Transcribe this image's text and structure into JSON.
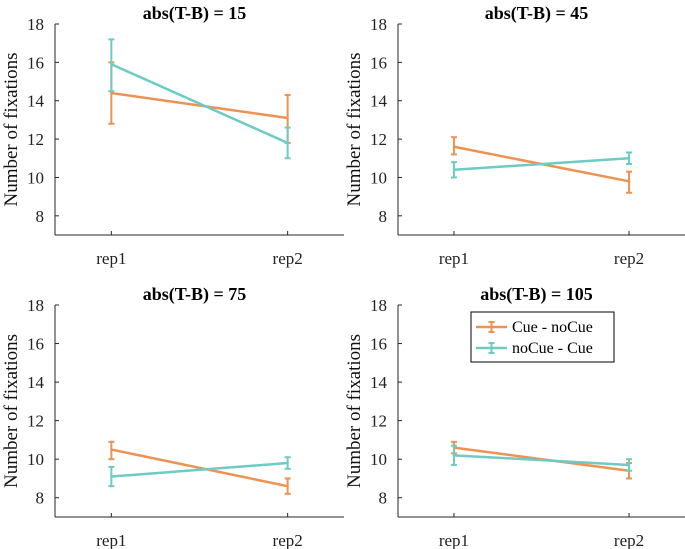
{
  "colors": {
    "cue_nocue": "#EE9254",
    "nocue_cue": "#6CCCC4",
    "axis": "#262626"
  },
  "legend": {
    "entries": [
      "Cue - noCue",
      "noCue - Cue"
    ]
  },
  "chart_data": [
    {
      "type": "line",
      "title": "abs(T-B) = 15",
      "ylabel": "Number of fixations",
      "xlabel": "",
      "categories": [
        "rep1",
        "rep2"
      ],
      "ylim": [
        7,
        18
      ],
      "yticks": [
        8,
        10,
        12,
        14,
        16,
        18
      ],
      "series": [
        {
          "name": "Cue - noCue",
          "values": [
            14.4,
            13.1
          ],
          "err_low": [
            12.8,
            11.8
          ],
          "err_high": [
            16.0,
            14.3
          ]
        },
        {
          "name": "noCue - Cue",
          "values": [
            15.9,
            11.8
          ],
          "err_low": [
            14.5,
            11.0
          ],
          "err_high": [
            17.2,
            12.6
          ]
        }
      ]
    },
    {
      "type": "line",
      "title": "abs(T-B) = 45",
      "ylabel": "Number of fixations",
      "xlabel": "",
      "categories": [
        "rep1",
        "rep2"
      ],
      "ylim": [
        7,
        18
      ],
      "yticks": [
        8,
        10,
        12,
        14,
        16,
        18
      ],
      "series": [
        {
          "name": "Cue - noCue",
          "values": [
            11.6,
            9.8
          ],
          "err_low": [
            11.2,
            9.2
          ],
          "err_high": [
            12.1,
            10.3
          ]
        },
        {
          "name": "noCue - Cue",
          "values": [
            10.4,
            11.0
          ],
          "err_low": [
            10.0,
            10.7
          ],
          "err_high": [
            10.8,
            11.3
          ]
        }
      ]
    },
    {
      "type": "line",
      "title": "abs(T-B) = 75",
      "ylabel": "Number of fixations",
      "xlabel": "",
      "categories": [
        "rep1",
        "rep2"
      ],
      "ylim": [
        7,
        18
      ],
      "yticks": [
        8,
        10,
        12,
        14,
        16,
        18
      ],
      "series": [
        {
          "name": "Cue - noCue",
          "values": [
            10.5,
            8.6
          ],
          "err_low": [
            10.0,
            8.2
          ],
          "err_high": [
            10.9,
            9.0
          ]
        },
        {
          "name": "noCue - Cue",
          "values": [
            9.1,
            9.8
          ],
          "err_low": [
            8.6,
            9.5
          ],
          "err_high": [
            9.6,
            10.1
          ]
        }
      ]
    },
    {
      "type": "line",
      "title": "abs(T-B) = 105",
      "ylabel": "Number of fixations",
      "xlabel": "",
      "categories": [
        "rep1",
        "rep2"
      ],
      "ylim": [
        7,
        18
      ],
      "yticks": [
        8,
        10,
        12,
        14,
        16,
        18
      ],
      "series": [
        {
          "name": "Cue - noCue",
          "values": [
            10.6,
            9.4
          ],
          "err_low": [
            10.3,
            9.0
          ],
          "err_high": [
            10.9,
            9.8
          ]
        },
        {
          "name": "noCue - Cue",
          "values": [
            10.2,
            9.7
          ],
          "err_low": [
            9.7,
            9.4
          ],
          "err_high": [
            10.7,
            10.0
          ]
        }
      ]
    }
  ]
}
